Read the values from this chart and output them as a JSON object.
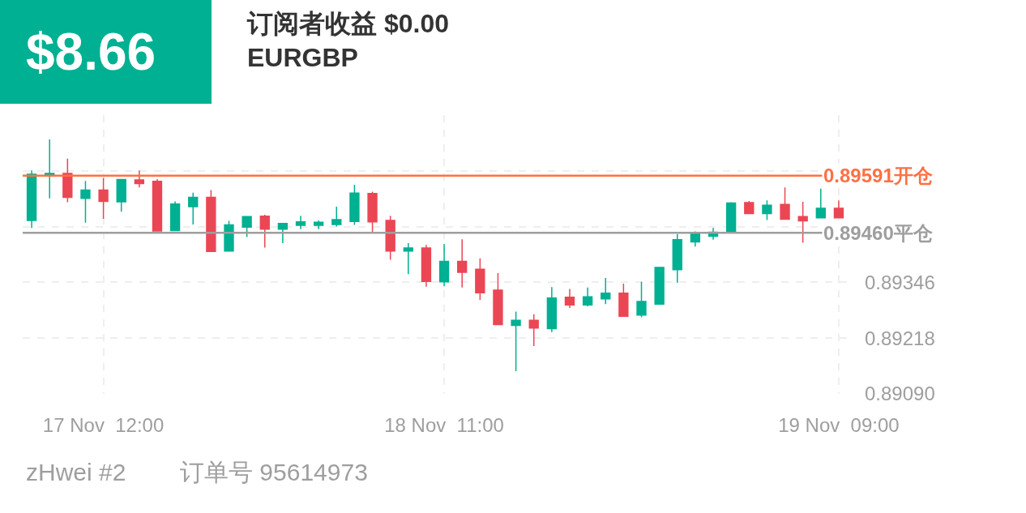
{
  "chart_data": {
    "type": "candlestick",
    "title": "订阅者收益 $0.00",
    "subtitle": "EURGBP",
    "annotations": [
      "$8.66",
      "zHwei #2",
      "订单号 95614973"
    ],
    "categories": [
      null,
      null,
      null,
      null,
      "17 Nov  12:00",
      null,
      null,
      null,
      null,
      null,
      null,
      null,
      null,
      null,
      null,
      null,
      null,
      null,
      null,
      null,
      null,
      null,
      null,
      "18 Nov  11:00",
      null,
      null,
      null,
      null,
      null,
      null,
      null,
      null,
      null,
      null,
      null,
      null,
      null,
      null,
      null,
      null,
      null,
      null,
      null,
      null,
      null,
      "19 Nov  09:00"
    ],
    "ohlc": [
      [
        0.89488,
        0.89603,
        0.89471,
        0.89594
      ],
      [
        0.89592,
        0.89674,
        0.89539,
        0.89596
      ],
      [
        0.89596,
        0.8963,
        0.8953,
        0.89541
      ],
      [
        0.89539,
        0.89579,
        0.89483,
        0.89558
      ],
      [
        0.89558,
        0.89586,
        0.89492,
        0.89532
      ],
      [
        0.89531,
        0.89582,
        0.89508,
        0.89582
      ],
      [
        0.89581,
        0.89603,
        0.89564,
        0.89573
      ],
      [
        0.89578,
        0.89583,
        0.89464,
        0.89464
      ],
      [
        0.89465,
        0.89532,
        0.89464,
        0.89526
      ],
      [
        0.8952,
        0.89552,
        0.89479,
        0.89541
      ],
      [
        0.89541,
        0.89558,
        0.89417,
        0.89417
      ],
      [
        0.89418,
        0.89487,
        0.89418,
        0.89478
      ],
      [
        0.89473,
        0.89497,
        0.8945,
        0.89497
      ],
      [
        0.89498,
        0.89501,
        0.89426,
        0.89468
      ],
      [
        0.89468,
        0.89481,
        0.89436,
        0.89481
      ],
      [
        0.89477,
        0.89499,
        0.89468,
        0.89485
      ],
      [
        0.89477,
        0.89488,
        0.89468,
        0.89484
      ],
      [
        0.89479,
        0.8952,
        0.89474,
        0.8949
      ],
      [
        0.89486,
        0.8957,
        0.89478,
        0.89551
      ],
      [
        0.8955,
        0.89554,
        0.8946,
        0.89485
      ],
      [
        0.89488,
        0.89499,
        0.89398,
        0.89418
      ],
      [
        0.89418,
        0.89436,
        0.89365,
        0.89425
      ],
      [
        0.89425,
        0.89432,
        0.89336,
        0.89348
      ],
      [
        0.89347,
        0.89434,
        0.89337,
        0.89394
      ],
      [
        0.89394,
        0.89445,
        0.89334,
        0.89369
      ],
      [
        0.89376,
        0.89401,
        0.89306,
        0.89322
      ],
      [
        0.89328,
        0.89367,
        0.89249,
        0.89249
      ],
      [
        0.89247,
        0.89279,
        0.89142,
        0.89259
      ],
      [
        0.89259,
        0.89273,
        0.892,
        0.89241
      ],
      [
        0.8924,
        0.89335,
        0.89232,
        0.8931
      ],
      [
        0.89312,
        0.89331,
        0.89287,
        0.89294
      ],
      [
        0.89294,
        0.89334,
        0.89291,
        0.89313
      ],
      [
        0.89308,
        0.89356,
        0.89296,
        0.89321
      ],
      [
        0.89321,
        0.89343,
        0.89268,
        0.89268
      ],
      [
        0.89271,
        0.89347,
        0.89266,
        0.89302
      ],
      [
        0.89296,
        0.8938,
        0.89296,
        0.8938
      ],
      [
        0.89375,
        0.89457,
        0.89345,
        0.89444
      ],
      [
        0.89439,
        0.89463,
        0.89428,
        0.89457
      ],
      [
        0.89452,
        0.89471,
        0.89444,
        0.89461
      ],
      [
        0.8946,
        0.8953,
        0.8946,
        0.89528
      ],
      [
        0.89529,
        0.89533,
        0.89504,
        0.89504
      ],
      [
        0.89504,
        0.89534,
        0.89489,
        0.89523
      ],
      [
        0.89525,
        0.89564,
        0.89491,
        0.89491
      ],
      [
        0.89497,
        0.89531,
        0.89437,
        0.89487
      ],
      [
        0.89494,
        0.89561,
        0.89494,
        0.89516
      ],
      [
        0.89516,
        0.89534,
        0.89494,
        0.89494
      ]
    ],
    "colors": [
      "#00b092",
      "#00b092",
      "#eb4654",
      "#00b092",
      "#eb4654",
      "#00b092",
      "#eb4654",
      "#eb4654",
      "#00b092",
      "#00b092",
      "#eb4654",
      "#00b092",
      "#00b092",
      "#eb4654",
      "#00b092",
      "#00b092",
      "#00b092",
      "#00b092",
      "#00b092",
      "#eb4654",
      "#eb4654",
      "#00b092",
      "#eb4654",
      "#00b092",
      "#eb4654",
      "#eb4654",
      "#eb4654",
      "#00b092",
      "#eb4654",
      "#00b092",
      "#eb4654",
      "#00b092",
      "#00b092",
      "#eb4654",
      "#00b092",
      "#00b092",
      "#00b092",
      "#00b092",
      "#00b092",
      "#00b092",
      "#eb4654",
      "#00b092",
      "#eb4654",
      "#eb4654",
      "#00b092",
      "#eb4654"
    ],
    "ylim": [
      0.8909,
      0.8973
    ],
    "yticks": [
      {
        "value": 0.8909,
        "label": "0.89090"
      },
      0.89218,
      0.89346,
      {
        "value": 0.89474,
        "label": null
      },
      {
        "value": 0.89602,
        "label": null
      }
    ],
    "ref_lines": [
      {
        "axis": "y",
        "value": 0.89591,
        "label": "0.89591开仓",
        "color": "#ff7043"
      },
      {
        "axis": "y",
        "value": 0.8946,
        "label": "0.89460平仓",
        "color": "#9e9e9e"
      }
    ],
    "grid": true
  }
}
